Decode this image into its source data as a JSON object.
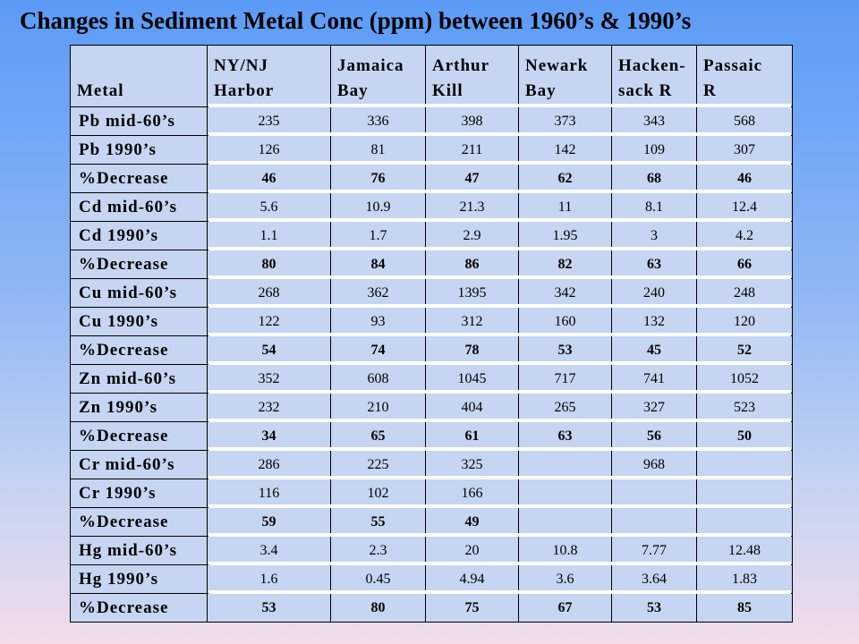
{
  "title": "Changes in Sediment Metal Conc (ppm) between 1960’s & 1990’s",
  "table": {
    "headers": [
      [
        "Metal"
      ],
      [
        "NY/NJ",
        "Harbor"
      ],
      [
        "Jamaica",
        "Bay"
      ],
      [
        "Arthur",
        "Kill"
      ],
      [
        "Newark",
        "Bay"
      ],
      [
        "Hacken-",
        "sack R"
      ],
      [
        "Passaic",
        "R"
      ]
    ],
    "rows": [
      {
        "metal": "Pb mid-60’s",
        "values": [
          "235",
          "336",
          "398",
          "373",
          "343",
          "568"
        ],
        "bold": false
      },
      {
        "metal": "Pb 1990’s",
        "values": [
          "126",
          "81",
          "211",
          "142",
          "109",
          "307"
        ],
        "bold": false
      },
      {
        "metal": "%Decrease",
        "values": [
          "46",
          "76",
          "47",
          "62",
          "68",
          "46"
        ],
        "bold": true
      },
      {
        "metal": "Cd mid-60’s",
        "values": [
          "5.6",
          "10.9",
          "21.3",
          "11",
          "8.1",
          "12.4"
        ],
        "bold": false
      },
      {
        "metal": "Cd 1990’s",
        "values": [
          "1.1",
          "1.7",
          "2.9",
          "1.95",
          "3",
          "4.2"
        ],
        "bold": false
      },
      {
        "metal": "%Decrease",
        "values": [
          "80",
          "84",
          "86",
          "82",
          "63",
          "66"
        ],
        "bold": true
      },
      {
        "metal": "Cu mid-60’s",
        "values": [
          "268",
          "362",
          "1395",
          "342",
          "240",
          "248"
        ],
        "bold": false
      },
      {
        "metal": "Cu 1990’s",
        "values": [
          "122",
          "93",
          "312",
          "160",
          "132",
          "120"
        ],
        "bold": false
      },
      {
        "metal": "%Decrease",
        "values": [
          "54",
          "74",
          "78",
          "53",
          "45",
          "52"
        ],
        "bold": true
      },
      {
        "metal": "Zn mid-60’s",
        "values": [
          "352",
          "608",
          "1045",
          "717",
          "741",
          "1052"
        ],
        "bold": false
      },
      {
        "metal": "Zn 1990’s",
        "values": [
          "232",
          "210",
          "404",
          "265",
          "327",
          "523"
        ],
        "bold": false
      },
      {
        "metal": "%Decrease",
        "values": [
          "34",
          "65",
          "61",
          "63",
          "56",
          "50"
        ],
        "bold": true
      },
      {
        "metal": "Cr mid-60’s",
        "values": [
          "286",
          "225",
          "325",
          "",
          "968",
          ""
        ],
        "bold": false
      },
      {
        "metal": "Cr 1990’s",
        "values": [
          "116",
          "102",
          "166",
          "",
          "",
          ""
        ],
        "bold": false
      },
      {
        "metal": "%Decrease",
        "values": [
          "59",
          "55",
          "49",
          "",
          "",
          ""
        ],
        "bold": true
      },
      {
        "metal": "Hg mid-60’s",
        "values": [
          "3.4",
          "2.3",
          "20",
          "10.8",
          "7.77",
          "12.48"
        ],
        "bold": false
      },
      {
        "metal": "Hg 1990’s",
        "values": [
          "1.6",
          "0.45",
          "4.94",
          "3.6",
          "3.64",
          "1.83"
        ],
        "bold": false
      },
      {
        "metal": "%Decrease",
        "values": [
          "53",
          "80",
          "75",
          "67",
          "53",
          "85"
        ],
        "bold": true
      }
    ]
  }
}
